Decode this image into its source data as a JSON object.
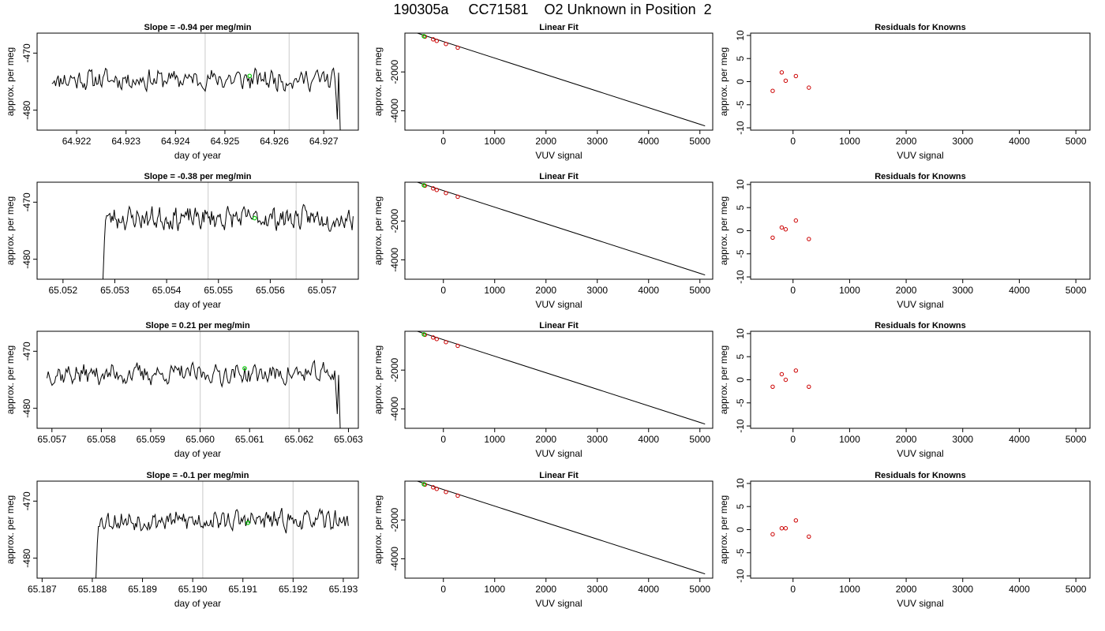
{
  "figure": {
    "title": "190305a     CC71581    O2 Unknown in Position  2"
  },
  "chart_data": [
    {
      "type": "line",
      "row": 1,
      "col": 1,
      "title": "Slope =  -0.94  per meg/min",
      "xlabel": "day of year",
      "ylabel": "approx. per meg",
      "xlim": [
        64.9212,
        64.9277
      ],
      "ylim": [
        -483.5,
        -466.5
      ],
      "xticks": [
        64.922,
        64.923,
        64.924,
        64.925,
        64.926,
        64.927
      ],
      "xtick_labels": [
        "64.922",
        "64.923",
        "64.924",
        "64.925",
        "64.926",
        "64.927"
      ],
      "yticks": [
        -470,
        -480
      ],
      "ytick_labels": [
        "-470",
        "-480"
      ],
      "vlines": [
        64.9246,
        64.9263
      ],
      "vline_color": "#d3d3d3",
      "series_color": "#000000",
      "x_start": 64.9215,
      "x_end": 64.9273,
      "y_base": -474.6,
      "y_noise": 1.4,
      "seed": 11,
      "drop_end": true,
      "drop_start": false,
      "highlight_point": [
        64.9255,
        -474.0
      ],
      "highlight_color": "#00cc00"
    },
    {
      "type": "scatter",
      "row": 1,
      "col": 2,
      "title": "Linear Fit",
      "xlabel": "VUV signal",
      "ylabel": "approx. per meg",
      "xlim": [
        -750,
        5250
      ],
      "ylim": [
        -5000,
        0
      ],
      "xticks": [
        0,
        1000,
        2000,
        3000,
        4000,
        5000
      ],
      "xtick_labels": [
        "0",
        "1000",
        "2000",
        "3000",
        "4000",
        "5000"
      ],
      "yticks": [
        -2000,
        -4000
      ],
      "ytick_labels": [
        "-2000",
        "-4000"
      ],
      "fit_line": [
        [
          -650,
          120
        ],
        [
          5100,
          -4780
        ]
      ],
      "points_x": [
        -360,
        -200,
        -130,
        50,
        280
      ],
      "points_y": [
        -180,
        -320,
        -400,
        -560,
        -750
      ],
      "point_color": "#cc0000",
      "highlight_point": [
        -380,
        -160
      ],
      "highlight_color": "#00cc00"
    },
    {
      "type": "scatter",
      "row": 1,
      "col": 3,
      "title": "Residuals for Knowns",
      "xlabel": "VUV signal",
      "ylabel": "approx. per meg",
      "xlim": [
        -750,
        5250
      ],
      "ylim": [
        -10.5,
        10.5
      ],
      "xticks": [
        0,
        1000,
        2000,
        3000,
        4000,
        5000
      ],
      "xtick_labels": [
        "0",
        "1000",
        "2000",
        "3000",
        "4000",
        "5000"
      ],
      "yticks": [
        10,
        5,
        0,
        -5,
        -10
      ],
      "ytick_labels": [
        "10",
        "5",
        "0",
        "-5",
        "-10"
      ],
      "points_x": [
        -360,
        -200,
        -130,
        50,
        280
      ],
      "points_y": [
        -2.0,
        2.0,
        0.2,
        1.2,
        -1.3
      ],
      "point_color": "#cc0000"
    },
    {
      "type": "line",
      "row": 2,
      "col": 1,
      "title": "Slope =  -0.38  per meg/min",
      "xlabel": "day of year",
      "ylabel": "approx. per meg",
      "xlim": [
        65.0515,
        65.0577
      ],
      "ylim": [
        -483.5,
        -466.5
      ],
      "xticks": [
        65.052,
        65.053,
        65.054,
        65.055,
        65.056,
        65.057
      ],
      "xtick_labels": [
        "65.052",
        "65.053",
        "65.054",
        "65.055",
        "65.056",
        "65.057"
      ],
      "yticks": [
        -470,
        -480
      ],
      "ytick_labels": [
        "-470",
        "-480"
      ],
      "vlines": [
        65.0548,
        65.0565
      ],
      "vline_color": "#d3d3d3",
      "series_color": "#000000",
      "x_start": 65.0528,
      "x_end": 65.0576,
      "y_base": -472.8,
      "y_noise": 1.5,
      "seed": 23,
      "drop_end": false,
      "drop_start": true,
      "highlight_point": [
        65.0557,
        -472.8
      ],
      "highlight_color": "#00cc00"
    },
    {
      "type": "scatter",
      "row": 2,
      "col": 2,
      "title": "Linear Fit",
      "xlabel": "VUV signal",
      "ylabel": "approx. per meg",
      "xlim": [
        -750,
        5250
      ],
      "ylim": [
        -5000,
        0
      ],
      "xticks": [
        0,
        1000,
        2000,
        3000,
        4000,
        5000
      ],
      "xtick_labels": [
        "0",
        "1000",
        "2000",
        "3000",
        "4000",
        "5000"
      ],
      "yticks": [
        -2000,
        -4000
      ],
      "ytick_labels": [
        "-2000",
        "-4000"
      ],
      "fit_line": [
        [
          -650,
          120
        ],
        [
          5100,
          -4780
        ]
      ],
      "points_x": [
        -360,
        -200,
        -130,
        50,
        280
      ],
      "points_y": [
        -180,
        -320,
        -400,
        -560,
        -750
      ],
      "point_color": "#cc0000",
      "highlight_point": [
        -380,
        -160
      ],
      "highlight_color": "#00cc00"
    },
    {
      "type": "scatter",
      "row": 2,
      "col": 3,
      "title": "Residuals for Knowns",
      "xlabel": "VUV signal",
      "ylabel": "approx. per meg",
      "xlim": [
        -750,
        5250
      ],
      "ylim": [
        -10.5,
        10.5
      ],
      "xticks": [
        0,
        1000,
        2000,
        3000,
        4000,
        5000
      ],
      "xtick_labels": [
        "0",
        "1000",
        "2000",
        "3000",
        "4000",
        "5000"
      ],
      "yticks": [
        10,
        5,
        0,
        -5,
        -10
      ],
      "ytick_labels": [
        "10",
        "5",
        "0",
        "-5",
        "-10"
      ],
      "points_x": [
        -360,
        -200,
        -130,
        50,
        280
      ],
      "points_y": [
        -1.5,
        0.7,
        0.3,
        2.2,
        -1.8
      ],
      "point_color": "#cc0000"
    },
    {
      "type": "line",
      "row": 3,
      "col": 1,
      "title": "Slope =  0.21  per meg/min",
      "xlabel": "day of year",
      "ylabel": "approx. per meg",
      "xlim": [
        65.0567,
        65.0632
      ],
      "ylim": [
        -483.5,
        -466.5
      ],
      "xticks": [
        65.057,
        65.058,
        65.059,
        65.06,
        65.061,
        65.062,
        65.063
      ],
      "xtick_labels": [
        "65.057",
        "65.058",
        "65.059",
        "65.060",
        "65.061",
        "65.062",
        "65.063"
      ],
      "yticks": [
        -470,
        -480
      ],
      "ytick_labels": [
        "-470",
        "-480"
      ],
      "vlines": [
        65.06,
        65.0618
      ],
      "vline_color": "#d3d3d3",
      "series_color": "#000000",
      "x_start": 65.0569,
      "x_end": 65.0628,
      "y_base": -474.0,
      "y_noise": 1.4,
      "seed": 37,
      "drop_end": true,
      "drop_start": false,
      "highlight_point": [
        65.0609,
        -473.0
      ],
      "highlight_color": "#00cc00"
    },
    {
      "type": "scatter",
      "row": 3,
      "col": 2,
      "title": "Linear Fit",
      "xlabel": "VUV signal",
      "ylabel": "approx. per meg",
      "xlim": [
        -750,
        5250
      ],
      "ylim": [
        -5000,
        0
      ],
      "xticks": [
        0,
        1000,
        2000,
        3000,
        4000,
        5000
      ],
      "xtick_labels": [
        "0",
        "1000",
        "2000",
        "3000",
        "4000",
        "5000"
      ],
      "yticks": [
        -2000,
        -4000
      ],
      "ytick_labels": [
        "-2000",
        "-4000"
      ],
      "fit_line": [
        [
          -650,
          120
        ],
        [
          5100,
          -4780
        ]
      ],
      "points_x": [
        -360,
        -200,
        -130,
        50,
        280
      ],
      "points_y": [
        -180,
        -320,
        -400,
        -560,
        -750
      ],
      "point_color": "#cc0000",
      "highlight_point": [
        -380,
        -160
      ],
      "highlight_color": "#00cc00"
    },
    {
      "type": "scatter",
      "row": 3,
      "col": 3,
      "title": "Residuals for Knowns",
      "xlabel": "VUV signal",
      "ylabel": "approx. per meg",
      "xlim": [
        -750,
        5250
      ],
      "ylim": [
        -10.5,
        10.5
      ],
      "xticks": [
        0,
        1000,
        2000,
        3000,
        4000,
        5000
      ],
      "xtick_labels": [
        "0",
        "1000",
        "2000",
        "3000",
        "4000",
        "5000"
      ],
      "yticks": [
        10,
        5,
        0,
        -5,
        -10
      ],
      "ytick_labels": [
        "10",
        "5",
        "0",
        "-5",
        "-10"
      ],
      "points_x": [
        -360,
        -200,
        -130,
        50,
        280
      ],
      "points_y": [
        -1.5,
        1.2,
        0.0,
        2.0,
        -1.5
      ],
      "point_color": "#cc0000"
    },
    {
      "type": "line",
      "row": 4,
      "col": 1,
      "title": "Slope =  -0.1  per meg/min",
      "xlabel": "day of year",
      "ylabel": "approx. per meg",
      "xlim": [
        65.1869,
        65.1933
      ],
      "ylim": [
        -483.5,
        -466.5
      ],
      "xticks": [
        65.187,
        65.188,
        65.189,
        65.19,
        65.191,
        65.192,
        65.193
      ],
      "xtick_labels": [
        "65.187",
        "65.188",
        "65.189",
        "65.190",
        "65.191",
        "65.192",
        "65.193"
      ],
      "yticks": [
        -470,
        -480
      ],
      "ytick_labels": [
        "-470",
        "-480"
      ],
      "vlines": [
        65.1902,
        65.192
      ],
      "vline_color": "#d3d3d3",
      "series_color": "#000000",
      "x_start": 65.1881,
      "x_end": 65.1931,
      "y_base": -473.4,
      "y_noise": 1.3,
      "seed": 53,
      "drop_end": false,
      "drop_start": true,
      "highlight_point": [
        65.1911,
        -473.8
      ],
      "highlight_color": "#00cc00"
    },
    {
      "type": "scatter",
      "row": 4,
      "col": 2,
      "title": "Linear Fit",
      "xlabel": "VUV signal",
      "ylabel": "approx. per meg",
      "xlim": [
        -750,
        5250
      ],
      "ylim": [
        -5000,
        0
      ],
      "xticks": [
        0,
        1000,
        2000,
        3000,
        4000,
        5000
      ],
      "xtick_labels": [
        "0",
        "1000",
        "2000",
        "3000",
        "4000",
        "5000"
      ],
      "yticks": [
        -2000,
        -4000
      ],
      "ytick_labels": [
        "-2000",
        "-4000"
      ],
      "fit_line": [
        [
          -650,
          120
        ],
        [
          5100,
          -4780
        ]
      ],
      "points_x": [
        -360,
        -200,
        -130,
        50,
        280
      ],
      "points_y": [
        -180,
        -320,
        -400,
        -560,
        -750
      ],
      "point_color": "#cc0000",
      "highlight_point": [
        -380,
        -160
      ],
      "highlight_color": "#00cc00"
    },
    {
      "type": "scatter",
      "row": 4,
      "col": 3,
      "title": "Residuals for Knowns",
      "xlabel": "VUV signal",
      "ylabel": "approx. per meg",
      "xlim": [
        -750,
        5250
      ],
      "ylim": [
        -10.5,
        10.5
      ],
      "xticks": [
        0,
        1000,
        2000,
        3000,
        4000,
        5000
      ],
      "xtick_labels": [
        "0",
        "1000",
        "2000",
        "3000",
        "4000",
        "5000"
      ],
      "yticks": [
        10,
        5,
        0,
        -5,
        -10
      ],
      "ytick_labels": [
        "10",
        "5",
        "0",
        "-5",
        "-10"
      ],
      "points_x": [
        -360,
        -200,
        -130,
        50,
        280
      ],
      "points_y": [
        -1.0,
        0.3,
        0.3,
        2.0,
        -1.5
      ],
      "point_color": "#cc0000"
    }
  ]
}
